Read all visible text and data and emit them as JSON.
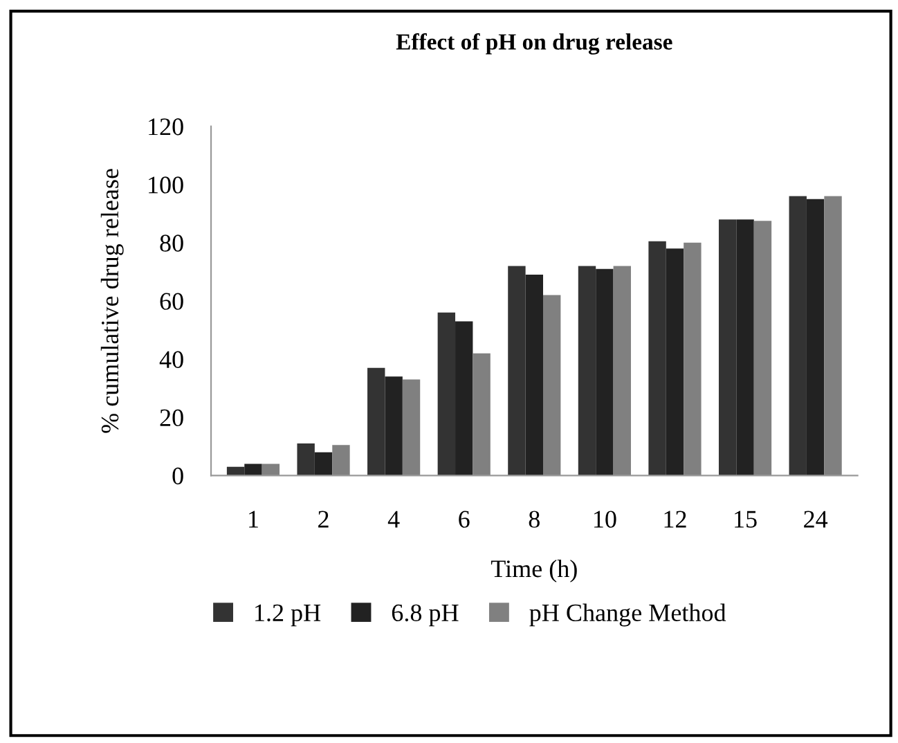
{
  "chart_data": {
    "type": "bar",
    "title": "Effect of pH on drug release",
    "xlabel": "Time (h)",
    "ylabel": "% cumulative drug release",
    "categories": [
      "1",
      "2",
      "4",
      "6",
      "8",
      "10",
      "12",
      "15",
      "24"
    ],
    "series": [
      {
        "name": "1.2 pH",
        "color": "#333333",
        "values": [
          3,
          11,
          37,
          56,
          72,
          72,
          80.5,
          88,
          96
        ]
      },
      {
        "name": "6.8 pH",
        "color": "#222222",
        "values": [
          4,
          8,
          34,
          53,
          69,
          71,
          78,
          88,
          95
        ]
      },
      {
        "name": "pH Change Method",
        "color": "#808080",
        "values": [
          4,
          10.5,
          33,
          42,
          62,
          72,
          80,
          87.5,
          96
        ]
      }
    ],
    "ylim": [
      0,
      120
    ],
    "yticks": [
      0,
      20,
      40,
      60,
      80,
      100,
      120
    ],
    "grid": false,
    "legend": "bottom"
  }
}
